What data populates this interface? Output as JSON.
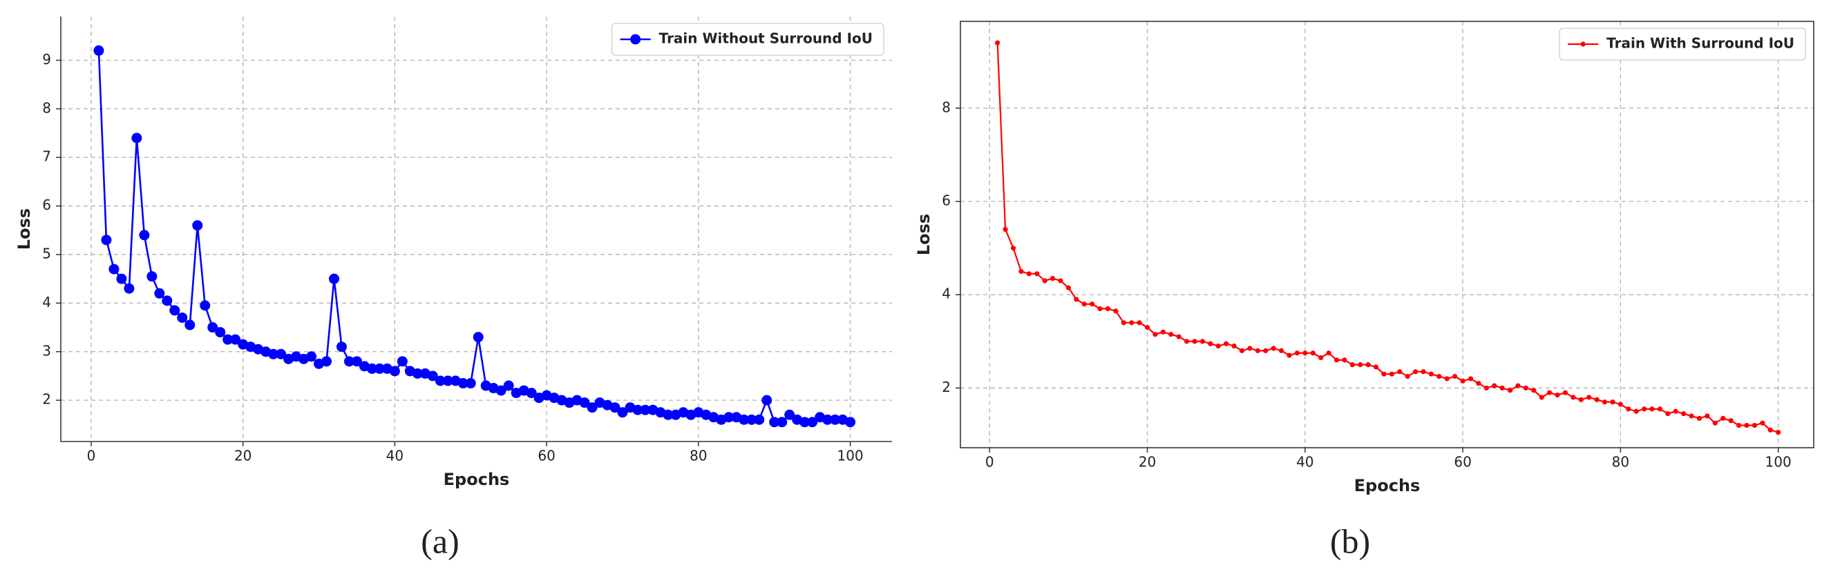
{
  "chart_data": [
    {
      "type": "line",
      "caption": "(a)",
      "x_label": "Epochs",
      "y_label": "Loss",
      "grid": true,
      "legend": "upper right",
      "xlim": [
        -4,
        105.5
      ],
      "ylim": [
        1.15,
        9.9
      ],
      "xticks": [
        0,
        20,
        40,
        60,
        80,
        100
      ],
      "yticks": [
        2,
        3,
        4,
        5,
        6,
        7,
        8,
        9
      ],
      "x": [
        1,
        2,
        3,
        4,
        5,
        6,
        7,
        8,
        9,
        10,
        11,
        12,
        13,
        14,
        15,
        16,
        17,
        18,
        19,
        20,
        21,
        22,
        23,
        24,
        25,
        26,
        27,
        28,
        29,
        30,
        31,
        32,
        33,
        34,
        35,
        36,
        37,
        38,
        39,
        40,
        41,
        42,
        43,
        44,
        45,
        46,
        47,
        48,
        49,
        50,
        51,
        52,
        53,
        54,
        55,
        56,
        57,
        58,
        59,
        60,
        61,
        62,
        63,
        64,
        65,
        66,
        67,
        68,
        69,
        70,
        71,
        72,
        73,
        74,
        75,
        76,
        77,
        78,
        79,
        80,
        81,
        82,
        83,
        84,
        85,
        86,
        87,
        88,
        89,
        90,
        91,
        92,
        93,
        94,
        95,
        96,
        97,
        98,
        99,
        100
      ],
      "series": [
        {
          "name": "Train Without Surround IoU",
          "color": "#0000ff",
          "values": [
            9.2,
            5.3,
            4.7,
            4.5,
            4.3,
            7.4,
            5.4,
            4.55,
            4.2,
            4.05,
            3.85,
            3.7,
            3.55,
            5.6,
            3.95,
            3.5,
            3.4,
            3.25,
            3.25,
            3.15,
            3.1,
            3.05,
            3.0,
            2.95,
            2.95,
            2.85,
            2.9,
            2.85,
            2.9,
            2.75,
            2.8,
            4.5,
            3.1,
            2.8,
            2.8,
            2.7,
            2.65,
            2.65,
            2.65,
            2.6,
            2.8,
            2.6,
            2.55,
            2.55,
            2.5,
            2.4,
            2.4,
            2.4,
            2.35,
            2.35,
            3.3,
            2.3,
            2.25,
            2.2,
            2.3,
            2.15,
            2.2,
            2.15,
            2.05,
            2.1,
            2.05,
            2.0,
            1.95,
            2.0,
            1.95,
            1.85,
            1.95,
            1.9,
            1.85,
            1.75,
            1.85,
            1.8,
            1.8,
            1.8,
            1.75,
            1.7,
            1.7,
            1.75,
            1.7,
            1.75,
            1.7,
            1.65,
            1.6,
            1.65,
            1.65,
            1.6,
            1.6,
            1.6,
            2.0,
            1.55,
            1.55,
            1.7,
            1.6,
            1.55,
            1.55,
            1.65,
            1.6,
            1.6,
            1.6,
            1.55
          ]
        }
      ]
    },
    {
      "type": "line",
      "caption": "(b)",
      "x_label": "Epochs",
      "y_label": "Loss",
      "grid": true,
      "legend": "upper right",
      "xlim": [
        -3.7,
        104.5
      ],
      "ylim": [
        0.72,
        9.86
      ],
      "xticks": [
        0,
        20,
        40,
        60,
        80,
        100
      ],
      "yticks": [
        2,
        4,
        6,
        8
      ],
      "x": [
        1,
        2,
        3,
        4,
        5,
        6,
        7,
        8,
        9,
        10,
        11,
        12,
        13,
        14,
        15,
        16,
        17,
        18,
        19,
        20,
        21,
        22,
        23,
        24,
        25,
        26,
        27,
        28,
        29,
        30,
        31,
        32,
        33,
        34,
        35,
        36,
        37,
        38,
        39,
        40,
        41,
        42,
        43,
        44,
        45,
        46,
        47,
        48,
        49,
        50,
        51,
        52,
        53,
        54,
        55,
        56,
        57,
        58,
        59,
        60,
        61,
        62,
        63,
        64,
        65,
        66,
        67,
        68,
        69,
        70,
        71,
        72,
        73,
        74,
        75,
        76,
        77,
        78,
        79,
        80,
        81,
        82,
        83,
        84,
        85,
        86,
        87,
        88,
        89,
        90,
        91,
        92,
        93,
        94,
        95,
        96,
        97,
        98,
        99,
        100
      ],
      "series": [
        {
          "name": "Train With Surround IoU",
          "color": "#ff0000",
          "values": [
            9.4,
            5.4,
            5.0,
            4.5,
            4.45,
            4.45,
            4.3,
            4.35,
            4.3,
            4.15,
            3.9,
            3.8,
            3.8,
            3.7,
            3.7,
            3.65,
            3.4,
            3.4,
            3.4,
            3.3,
            3.15,
            3.2,
            3.15,
            3.1,
            3.0,
            3.0,
            3.0,
            2.95,
            2.9,
            2.95,
            2.9,
            2.8,
            2.85,
            2.8,
            2.8,
            2.85,
            2.8,
            2.7,
            2.75,
            2.75,
            2.75,
            2.65,
            2.75,
            2.6,
            2.6,
            2.5,
            2.5,
            2.5,
            2.45,
            2.3,
            2.3,
            2.35,
            2.25,
            2.35,
            2.35,
            2.3,
            2.25,
            2.2,
            2.25,
            2.15,
            2.2,
            2.1,
            2.0,
            2.05,
            2.0,
            1.95,
            2.05,
            2.0,
            1.95,
            1.8,
            1.9,
            1.85,
            1.9,
            1.8,
            1.75,
            1.8,
            1.75,
            1.7,
            1.7,
            1.65,
            1.55,
            1.5,
            1.55,
            1.55,
            1.55,
            1.45,
            1.5,
            1.45,
            1.4,
            1.35,
            1.4,
            1.25,
            1.35,
            1.3,
            1.2,
            1.2,
            1.2,
            1.25,
            1.1,
            1.05
          ]
        }
      ]
    }
  ]
}
